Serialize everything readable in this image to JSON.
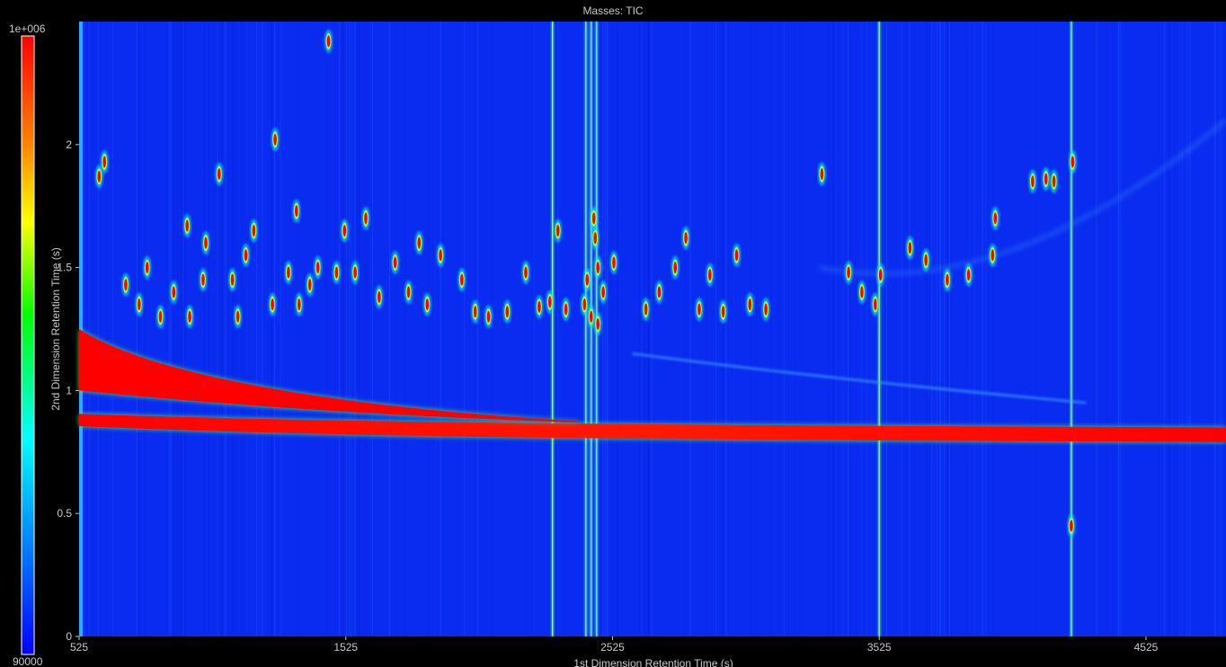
{
  "chart_data": {
    "type": "heatmap",
    "title": "Masses: TIC",
    "xlabel": "1st Dimension Retention Time (s)",
    "ylabel": "2nd Dimension Retention Time (s)",
    "xlim": [
      525,
      4825
    ],
    "ylim": [
      0,
      2.5
    ],
    "x_ticks": [
      525,
      1525,
      2525,
      3525,
      4525
    ],
    "y_ticks": [
      0,
      0.5,
      1,
      1.5,
      2
    ],
    "colorbar": {
      "max_label": "1e+006",
      "min_label": "90000",
      "max": 1000000,
      "min": 90000,
      "colormap": "jet"
    },
    "bands": [
      {
        "name": "upper column bleed",
        "x_start": 525,
        "x_end": 2400,
        "y_start": 1.1,
        "y_end": 0.87
      },
      {
        "name": "lower column bleed",
        "x_start": 525,
        "x_end": 4825,
        "y_start": 0.88,
        "y_end": 0.82
      }
    ],
    "vertical_streaks_x": [
      2300,
      2425,
      2445,
      2465,
      3525,
      4245
    ],
    "peaks": [
      {
        "x": 600,
        "y": 1.87
      },
      {
        "x": 620,
        "y": 1.93
      },
      {
        "x": 700,
        "y": 1.43
      },
      {
        "x": 750,
        "y": 1.35
      },
      {
        "x": 780,
        "y": 1.5
      },
      {
        "x": 830,
        "y": 1.3
      },
      {
        "x": 880,
        "y": 1.4
      },
      {
        "x": 930,
        "y": 1.67
      },
      {
        "x": 940,
        "y": 1.3
      },
      {
        "x": 990,
        "y": 1.45
      },
      {
        "x": 1000,
        "y": 1.6
      },
      {
        "x": 1050,
        "y": 1.88
      },
      {
        "x": 1100,
        "y": 1.45
      },
      {
        "x": 1120,
        "y": 1.3
      },
      {
        "x": 1150,
        "y": 1.55
      },
      {
        "x": 1180,
        "y": 1.65
      },
      {
        "x": 1250,
        "y": 1.35
      },
      {
        "x": 1260,
        "y": 2.02
      },
      {
        "x": 1310,
        "y": 1.48
      },
      {
        "x": 1340,
        "y": 1.73
      },
      {
        "x": 1350,
        "y": 1.35
      },
      {
        "x": 1390,
        "y": 1.43
      },
      {
        "x": 1420,
        "y": 1.5
      },
      {
        "x": 1460,
        "y": 2.42
      },
      {
        "x": 1490,
        "y": 1.48
      },
      {
        "x": 1520,
        "y": 1.65
      },
      {
        "x": 1560,
        "y": 1.48
      },
      {
        "x": 1600,
        "y": 1.7
      },
      {
        "x": 1650,
        "y": 1.38
      },
      {
        "x": 1710,
        "y": 1.52
      },
      {
        "x": 1760,
        "y": 1.4
      },
      {
        "x": 1800,
        "y": 1.6
      },
      {
        "x": 1830,
        "y": 1.35
      },
      {
        "x": 1880,
        "y": 1.55
      },
      {
        "x": 1960,
        "y": 1.45
      },
      {
        "x": 2010,
        "y": 1.32
      },
      {
        "x": 2060,
        "y": 1.3
      },
      {
        "x": 2130,
        "y": 1.32
      },
      {
        "x": 2200,
        "y": 1.48
      },
      {
        "x": 2250,
        "y": 1.34
      },
      {
        "x": 2290,
        "y": 1.36
      },
      {
        "x": 2320,
        "y": 1.65
      },
      {
        "x": 2350,
        "y": 1.33
      },
      {
        "x": 2430,
        "y": 1.45
      },
      {
        "x": 2460,
        "y": 1.62
      },
      {
        "x": 2490,
        "y": 1.4
      },
      {
        "x": 2530,
        "y": 1.52
      },
      {
        "x": 2650,
        "y": 1.33
      },
      {
        "x": 2700,
        "y": 1.4
      },
      {
        "x": 2760,
        "y": 1.5
      },
      {
        "x": 2800,
        "y": 1.62
      },
      {
        "x": 2850,
        "y": 1.33
      },
      {
        "x": 2890,
        "y": 1.47
      },
      {
        "x": 2940,
        "y": 1.32
      },
      {
        "x": 2990,
        "y": 1.55
      },
      {
        "x": 3040,
        "y": 1.35
      },
      {
        "x": 3100,
        "y": 1.33
      },
      {
        "x": 3310,
        "y": 1.88
      },
      {
        "x": 3410,
        "y": 1.48
      },
      {
        "x": 3460,
        "y": 1.4
      },
      {
        "x": 3510,
        "y": 1.35
      },
      {
        "x": 3530,
        "y": 1.47
      },
      {
        "x": 3640,
        "y": 1.58
      },
      {
        "x": 3700,
        "y": 1.53
      },
      {
        "x": 3780,
        "y": 1.45
      },
      {
        "x": 3860,
        "y": 1.47
      },
      {
        "x": 3950,
        "y": 1.55
      },
      {
        "x": 3960,
        "y": 1.7
      },
      {
        "x": 4100,
        "y": 1.85
      },
      {
        "x": 4150,
        "y": 1.86
      },
      {
        "x": 4180,
        "y": 1.85
      },
      {
        "x": 4250,
        "y": 1.93
      },
      {
        "x": 4245,
        "y": 0.45
      },
      {
        "x": 2445,
        "y": 1.3
      },
      {
        "x": 2470,
        "y": 1.27
      },
      {
        "x": 2420,
        "y": 1.35
      },
      {
        "x": 2455,
        "y": 1.7
      },
      {
        "x": 2470,
        "y": 1.5
      }
    ]
  }
}
